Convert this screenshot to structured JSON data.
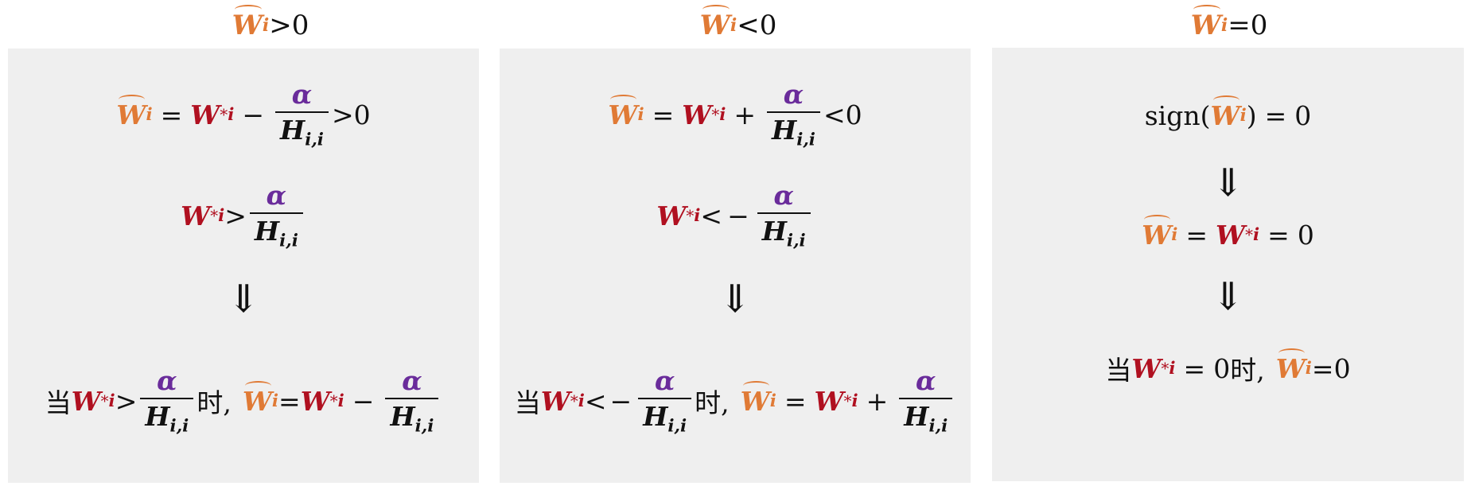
{
  "symbols": {
    "w": "W",
    "i": "i",
    "star": "*",
    "alpha": "α",
    "h": "H",
    "hsub": "i,i",
    "arrow": "⇓",
    "zero": "0",
    "sign": "sign"
  },
  "labels": {
    "when": "当",
    "then": "时,"
  },
  "panels": [
    {
      "header_rel": ">0"
    },
    {
      "header_rel": "<0"
    },
    {
      "header_rel": "=0"
    }
  ],
  "colors": {
    "orange": "#e07a35",
    "red": "#b01020",
    "purple": "#6a2c9b",
    "panel_bg": "#efefef"
  }
}
